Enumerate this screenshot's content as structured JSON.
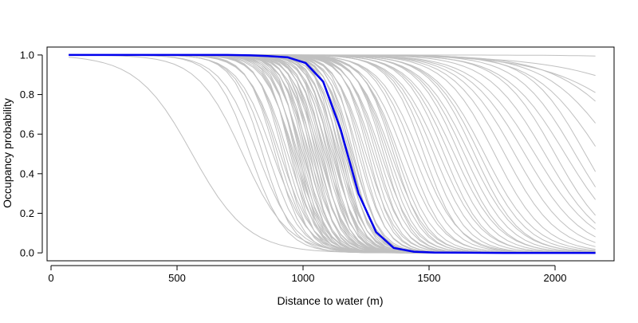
{
  "chart_data": {
    "type": "line",
    "title": "",
    "xlabel": "Distance to water (m)",
    "ylabel": "Occupancy probability",
    "xlim": [
      0,
      2250
    ],
    "ylim": [
      0,
      1.04
    ],
    "xticks": [
      0,
      500,
      1000,
      1500,
      2000
    ],
    "yticks": [
      0.0,
      0.2,
      0.4,
      0.6,
      0.8,
      1.0
    ],
    "xtick_labels": [
      "0",
      "500",
      "1000",
      "1500",
      "2000"
    ],
    "ytick_labels": [
      "0.0",
      "0.2",
      "0.4",
      "0.6",
      "0.8",
      "1.0"
    ],
    "grid": false,
    "legend": "none",
    "colors": {
      "mean": "#0000ee",
      "draws": "#c0c0c0",
      "axis": "#000000"
    },
    "x_range": [
      70,
      2160
    ],
    "main_series": {
      "color": "#0000ee",
      "x": [
        70,
        220,
        380,
        540,
        700,
        790,
        860,
        940,
        1010,
        1080,
        1150,
        1220,
        1290,
        1360,
        1440,
        1520,
        1600,
        1800,
        2000,
        2160
      ],
      "y": [
        1.0,
        1.0,
        1.0,
        1.0,
        1.0,
        0.998,
        0.995,
        0.988,
        0.96,
        0.865,
        0.62,
        0.3,
        0.105,
        0.025,
        0.006,
        0.002,
        0.001,
        0.0,
        0.0,
        0.0
      ]
    },
    "draws": {
      "color": "#c0c0c0",
      "model": "logistic",
      "description_note": "",
      "params": [
        [
          560,
          110
        ],
        [
          760,
          90
        ],
        [
          790,
          70
        ],
        [
          820,
          75
        ],
        [
          840,
          60
        ],
        [
          860,
          65
        ],
        [
          880,
          70
        ],
        [
          890,
          55
        ],
        [
          900,
          60
        ],
        [
          910,
          65
        ],
        [
          920,
          50
        ],
        [
          930,
          55
        ],
        [
          940,
          60
        ],
        [
          950,
          45
        ],
        [
          955,
          50
        ],
        [
          960,
          55
        ],
        [
          965,
          60
        ],
        [
          970,
          45
        ],
        [
          975,
          50
        ],
        [
          980,
          55
        ],
        [
          985,
          40
        ],
        [
          990,
          45
        ],
        [
          995,
          50
        ],
        [
          1000,
          55
        ],
        [
          1005,
          45
        ],
        [
          1010,
          40
        ],
        [
          1015,
          50
        ],
        [
          1020,
          45
        ],
        [
          1025,
          55
        ],
        [
          1030,
          40
        ],
        [
          1035,
          50
        ],
        [
          1040,
          45
        ],
        [
          1045,
          55
        ],
        [
          1050,
          40
        ],
        [
          1055,
          50
        ],
        [
          1060,
          45
        ],
        [
          1065,
          55
        ],
        [
          1070,
          50
        ],
        [
          1075,
          45
        ],
        [
          1080,
          40
        ],
        [
          1085,
          50
        ],
        [
          1090,
          55
        ],
        [
          1095,
          45
        ],
        [
          1100,
          50
        ],
        [
          1105,
          40
        ],
        [
          1110,
          45
        ],
        [
          1115,
          55
        ],
        [
          1120,
          50
        ],
        [
          1125,
          45
        ],
        [
          1130,
          40
        ],
        [
          1135,
          50
        ],
        [
          1140,
          55
        ],
        [
          1145,
          45
        ],
        [
          1150,
          50
        ],
        [
          1155,
          40
        ],
        [
          1160,
          45
        ],
        [
          1165,
          55
        ],
        [
          1170,
          50
        ],
        [
          1175,
          45
        ],
        [
          1180,
          55
        ],
        [
          1185,
          50
        ],
        [
          1190,
          45
        ],
        [
          1195,
          55
        ],
        [
          1200,
          50
        ],
        [
          1210,
          45
        ],
        [
          1220,
          55
        ],
        [
          1230,
          50
        ],
        [
          1240,
          55
        ],
        [
          1250,
          60
        ],
        [
          1260,
          50
        ],
        [
          1270,
          55
        ],
        [
          1280,
          60
        ],
        [
          1290,
          55
        ],
        [
          1300,
          60
        ],
        [
          1310,
          65
        ],
        [
          1320,
          55
        ],
        [
          1330,
          60
        ],
        [
          1340,
          65
        ],
        [
          1350,
          70
        ],
        [
          1360,
          60
        ],
        [
          1370,
          65
        ],
        [
          1380,
          70
        ],
        [
          1400,
          75
        ],
        [
          1420,
          70
        ],
        [
          1440,
          75
        ],
        [
          1460,
          80
        ],
        [
          1480,
          70
        ],
        [
          1500,
          75
        ],
        [
          1520,
          80
        ],
        [
          1540,
          85
        ],
        [
          1560,
          80
        ],
        [
          1580,
          85
        ],
        [
          1600,
          90
        ],
        [
          1620,
          85
        ],
        [
          1640,
          90
        ],
        [
          1660,
          95
        ],
        [
          1680,
          90
        ],
        [
          1700,
          95
        ],
        [
          1720,
          100
        ],
        [
          1760,
          100
        ],
        [
          1800,
          105
        ],
        [
          1840,
          110
        ],
        [
          1880,
          115
        ],
        [
          1920,
          120
        ],
        [
          1960,
          115
        ],
        [
          2000,
          110
        ],
        [
          2040,
          120
        ],
        [
          2080,
          115
        ],
        [
          2120,
          110
        ],
        [
          2180,
          130
        ],
        [
          2250,
          140
        ],
        [
          2350,
          160
        ],
        [
          2450,
          200
        ],
        [
          2700,
          250
        ],
        [
          3100,
          180
        ]
      ]
    }
  }
}
